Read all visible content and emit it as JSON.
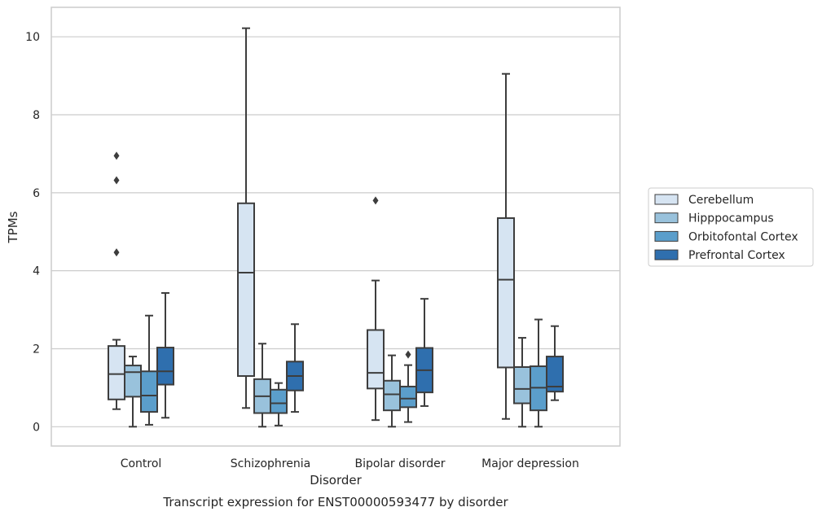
{
  "chart_data": {
    "type": "box",
    "title": "",
    "caption": "Transcript expression for ENST00000593477 by disorder",
    "xlabel": "Disorder",
    "ylabel": "TPMs",
    "ylim": [
      -0.5,
      10.7
    ],
    "yticks": [
      0,
      2,
      4,
      6,
      8,
      10
    ],
    "grid": true,
    "legend_position": "right",
    "categories": [
      "Control",
      "Schizophrenia",
      "Bipolar disorder",
      "Major depression"
    ],
    "series": [
      {
        "name": "Cerebellum",
        "color": "#d6e4f2",
        "boxes": [
          {
            "whisker_low": 0.45,
            "q1": 0.7,
            "median": 1.35,
            "q3": 2.07,
            "whisker_high": 2.23,
            "outliers": [
              4.47,
              6.32,
              6.95
            ]
          },
          {
            "whisker_low": 0.48,
            "q1": 1.3,
            "median": 3.95,
            "q3": 5.73,
            "whisker_high": 10.22,
            "outliers": []
          },
          {
            "whisker_low": 0.17,
            "q1": 0.98,
            "median": 1.38,
            "q3": 2.48,
            "whisker_high": 3.75,
            "outliers": [
              5.8
            ]
          },
          {
            "whisker_low": 0.2,
            "q1": 1.52,
            "median": 3.77,
            "q3": 5.35,
            "whisker_high": 9.05,
            "outliers": []
          }
        ]
      },
      {
        "name": "Hipppocampus",
        "color": "#99c2dc",
        "boxes": [
          {
            "whisker_low": 0.0,
            "q1": 0.77,
            "median": 1.4,
            "q3": 1.57,
            "whisker_high": 1.8,
            "outliers": []
          },
          {
            "whisker_low": 0.0,
            "q1": 0.35,
            "median": 0.78,
            "q3": 1.22,
            "whisker_high": 2.13,
            "outliers": []
          },
          {
            "whisker_low": 0.0,
            "q1": 0.42,
            "median": 0.83,
            "q3": 1.18,
            "whisker_high": 1.83,
            "outliers": []
          },
          {
            "whisker_low": 0.0,
            "q1": 0.6,
            "median": 0.97,
            "q3": 1.53,
            "whisker_high": 2.28,
            "outliers": []
          }
        ]
      },
      {
        "name": "Orbitofontal Cortex",
        "color": "#5b9ecb",
        "boxes": [
          {
            "whisker_low": 0.05,
            "q1": 0.38,
            "median": 0.8,
            "q3": 1.42,
            "whisker_high": 2.85,
            "outliers": []
          },
          {
            "whisker_low": 0.03,
            "q1": 0.35,
            "median": 0.6,
            "q3": 0.95,
            "whisker_high": 1.12,
            "outliers": []
          },
          {
            "whisker_low": 0.12,
            "q1": 0.5,
            "median": 0.72,
            "q3": 1.03,
            "whisker_high": 1.58,
            "outliers": [
              1.85
            ]
          },
          {
            "whisker_low": 0.0,
            "q1": 0.42,
            "median": 1.0,
            "q3": 1.55,
            "whisker_high": 2.75,
            "outliers": []
          }
        ]
      },
      {
        "name": "Prefrontal Cortex",
        "color": "#2f6fae",
        "boxes": [
          {
            "whisker_low": 0.23,
            "q1": 1.08,
            "median": 1.42,
            "q3": 2.03,
            "whisker_high": 3.43,
            "outliers": []
          },
          {
            "whisker_low": 0.38,
            "q1": 0.93,
            "median": 1.3,
            "q3": 1.67,
            "whisker_high": 2.63,
            "outliers": []
          },
          {
            "whisker_low": 0.53,
            "q1": 0.88,
            "median": 1.45,
            "q3": 2.02,
            "whisker_high": 3.28,
            "outliers": []
          },
          {
            "whisker_low": 0.68,
            "q1": 0.9,
            "median": 1.03,
            "q3": 1.8,
            "whisker_high": 2.58,
            "outliers": []
          }
        ]
      }
    ]
  }
}
